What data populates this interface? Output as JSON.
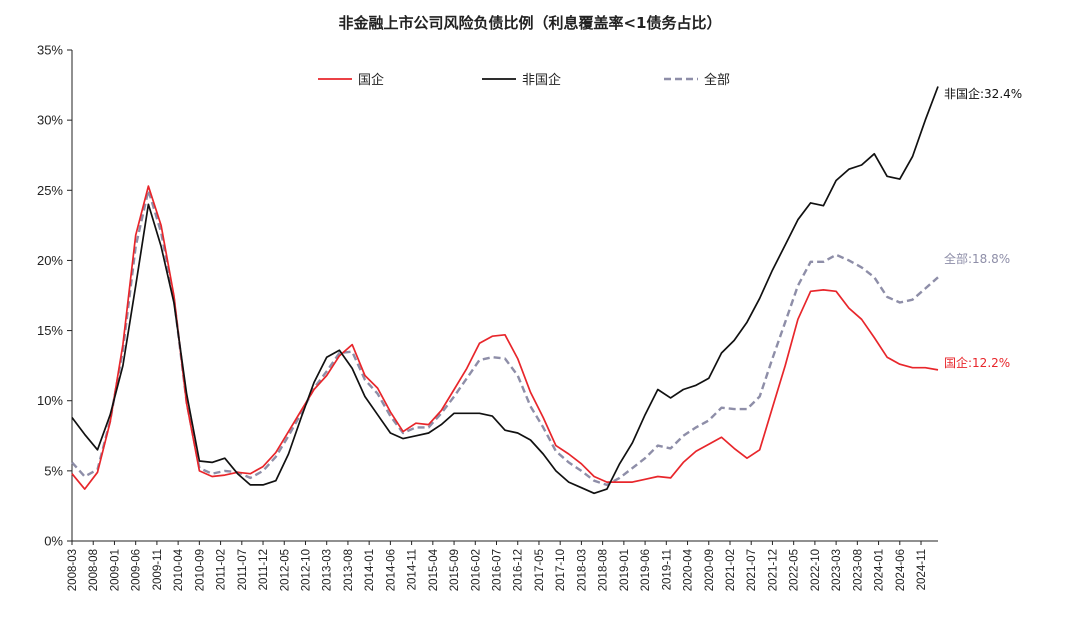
{
  "chart_data": {
    "type": "line",
    "title": "非金融上市公司风险负债比例（利息覆盖率<1债务占比）",
    "xlabel": "",
    "ylabel": "",
    "ylim": [
      0,
      35
    ],
    "yticks": [
      "0%",
      "5%",
      "10%",
      "15%",
      "20%",
      "25%",
      "30%",
      "35%"
    ],
    "grid": false,
    "legend_position": "top",
    "x_tick_labels": [
      "2008-03",
      "2008-08",
      "2009-01",
      "2009-06",
      "2009-11",
      "2010-04",
      "2010-09",
      "2011-02",
      "2011-07",
      "2011-12",
      "2012-05",
      "2012-10",
      "2013-03",
      "2013-08",
      "2014-01",
      "2014-06",
      "2014-11",
      "2015-04",
      "2015-09",
      "2016-02",
      "2016-07",
      "2016-12",
      "2017-05",
      "2017-10",
      "2018-03",
      "2018-08",
      "2019-01",
      "2019-06",
      "2019-11",
      "2020-04",
      "2020-09",
      "2021-02",
      "2021-07",
      "2021-12",
      "2022-05",
      "2022-10",
      "2023-03",
      "2023-08",
      "2024-01",
      "2024-06",
      "2024-11"
    ],
    "series": [
      {
        "name": "国企",
        "color": "#e8262b",
        "dash": "solid",
        "end_label": "国企:12.2%",
        "points": [
          [
            "2008-03",
            4.8
          ],
          [
            "2008-06",
            3.7
          ],
          [
            "2008-09",
            4.9
          ],
          [
            "2008-12",
            8.5
          ],
          [
            "2009-03",
            14.0
          ],
          [
            "2009-06",
            21.8
          ],
          [
            "2009-09",
            25.3
          ],
          [
            "2009-12",
            22.5
          ],
          [
            "2010-03",
            17.5
          ],
          [
            "2010-06",
            9.8
          ],
          [
            "2010-09",
            5.0
          ],
          [
            "2010-12",
            4.6
          ],
          [
            "2011-03",
            4.7
          ],
          [
            "2011-06",
            4.9
          ],
          [
            "2011-09",
            4.8
          ],
          [
            "2011-12",
            5.3
          ],
          [
            "2012-03",
            6.3
          ],
          [
            "2012-06",
            7.8
          ],
          [
            "2012-09",
            9.3
          ],
          [
            "2012-12",
            10.8
          ],
          [
            "2013-03",
            11.8
          ],
          [
            "2013-06",
            13.2
          ],
          [
            "2013-09",
            14.0
          ],
          [
            "2013-12",
            11.8
          ],
          [
            "2014-03",
            10.9
          ],
          [
            "2014-06",
            9.2
          ],
          [
            "2014-09",
            7.8
          ],
          [
            "2014-12",
            8.4
          ],
          [
            "2015-03",
            8.3
          ],
          [
            "2015-06",
            9.3
          ],
          [
            "2015-09",
            10.8
          ],
          [
            "2015-12",
            12.3
          ],
          [
            "2016-03",
            14.1
          ],
          [
            "2016-06",
            14.6
          ],
          [
            "2016-09",
            14.7
          ],
          [
            "2016-12",
            13.0
          ],
          [
            "2017-03",
            10.6
          ],
          [
            "2017-06",
            8.8
          ],
          [
            "2017-09",
            6.8
          ],
          [
            "2017-12",
            6.2
          ],
          [
            "2018-03",
            5.5
          ],
          [
            "2018-06",
            4.6
          ],
          [
            "2018-09",
            4.2
          ],
          [
            "2018-12",
            4.2
          ],
          [
            "2019-03",
            4.2
          ],
          [
            "2019-06",
            4.4
          ],
          [
            "2019-09",
            4.6
          ],
          [
            "2019-12",
            4.5
          ],
          [
            "2020-03",
            5.6
          ],
          [
            "2020-06",
            6.4
          ],
          [
            "2020-09",
            6.9
          ],
          [
            "2020-12",
            7.4
          ],
          [
            "2021-03",
            6.6
          ],
          [
            "2021-06",
            5.9
          ],
          [
            "2021-09",
            6.5
          ],
          [
            "2021-12",
            9.5
          ],
          [
            "2022-03",
            12.5
          ],
          [
            "2022-06",
            15.8
          ],
          [
            "2022-09",
            17.8
          ],
          [
            "2022-12",
            17.9
          ],
          [
            "2023-03",
            17.8
          ],
          [
            "2023-06",
            16.6
          ],
          [
            "2023-09",
            15.8
          ],
          [
            "2023-12",
            14.5
          ],
          [
            "2024-03",
            13.1
          ],
          [
            "2024-06",
            12.6
          ],
          [
            "2024-09",
            12.35
          ],
          [
            "2024-12",
            12.35
          ],
          [
            "2025-03",
            12.2
          ]
        ]
      },
      {
        "name": "非国企",
        "color": "#111111",
        "dash": "solid",
        "end_label": "非国企:32.4%",
        "points": [
          [
            "2008-03",
            8.8
          ],
          [
            "2008-06",
            7.6
          ],
          [
            "2008-09",
            6.5
          ],
          [
            "2008-12",
            9.0
          ],
          [
            "2009-03",
            12.5
          ],
          [
            "2009-06",
            18.2
          ],
          [
            "2009-09",
            24.0
          ],
          [
            "2009-12",
            21.0
          ],
          [
            "2010-03",
            17.0
          ],
          [
            "2010-06",
            10.5
          ],
          [
            "2010-09",
            5.7
          ],
          [
            "2010-12",
            5.6
          ],
          [
            "2011-03",
            5.9
          ],
          [
            "2011-06",
            4.8
          ],
          [
            "2011-09",
            4.0
          ],
          [
            "2011-12",
            4.0
          ],
          [
            "2012-03",
            4.3
          ],
          [
            "2012-06",
            6.2
          ],
          [
            "2012-09",
            8.8
          ],
          [
            "2012-12",
            11.3
          ],
          [
            "2013-03",
            13.1
          ],
          [
            "2013-06",
            13.6
          ],
          [
            "2013-09",
            12.3
          ],
          [
            "2013-12",
            10.3
          ],
          [
            "2014-03",
            9.0
          ],
          [
            "2014-06",
            7.7
          ],
          [
            "2014-09",
            7.3
          ],
          [
            "2014-12",
            7.5
          ],
          [
            "2015-03",
            7.7
          ],
          [
            "2015-06",
            8.3
          ],
          [
            "2015-09",
            9.1
          ],
          [
            "2015-12",
            9.1
          ],
          [
            "2016-03",
            9.1
          ],
          [
            "2016-06",
            8.9
          ],
          [
            "2016-09",
            7.9
          ],
          [
            "2016-12",
            7.7
          ],
          [
            "2017-03",
            7.2
          ],
          [
            "2017-06",
            6.2
          ],
          [
            "2017-09",
            5.0
          ],
          [
            "2017-12",
            4.2
          ],
          [
            "2018-03",
            3.8
          ],
          [
            "2018-06",
            3.4
          ],
          [
            "2018-09",
            3.7
          ],
          [
            "2018-12",
            5.5
          ],
          [
            "2019-03",
            7.0
          ],
          [
            "2019-06",
            9.0
          ],
          [
            "2019-09",
            10.8
          ],
          [
            "2019-12",
            10.2
          ],
          [
            "2020-03",
            10.8
          ],
          [
            "2020-06",
            11.1
          ],
          [
            "2020-09",
            11.6
          ],
          [
            "2020-12",
            13.4
          ],
          [
            "2021-03",
            14.3
          ],
          [
            "2021-06",
            15.6
          ],
          [
            "2021-09",
            17.3
          ],
          [
            "2021-12",
            19.3
          ],
          [
            "2022-03",
            21.1
          ],
          [
            "2022-06",
            22.9
          ],
          [
            "2022-09",
            24.1
          ],
          [
            "2022-12",
            23.9
          ],
          [
            "2023-03",
            25.7
          ],
          [
            "2023-06",
            26.5
          ],
          [
            "2023-09",
            26.8
          ],
          [
            "2023-12",
            27.6
          ],
          [
            "2024-03",
            26.0
          ],
          [
            "2024-06",
            25.8
          ],
          [
            "2024-09",
            27.4
          ],
          [
            "2024-12",
            30.0
          ],
          [
            "2025-03",
            32.4
          ]
        ]
      },
      {
        "name": "全部",
        "color": "#8e8ea8",
        "dash": "dashed",
        "end_label": "全部:18.8%",
        "points": [
          [
            "2008-03",
            5.6
          ],
          [
            "2008-06",
            4.6
          ],
          [
            "2008-09",
            5.1
          ],
          [
            "2008-12",
            8.6
          ],
          [
            "2009-03",
            13.6
          ],
          [
            "2009-06",
            21.0
          ],
          [
            "2009-09",
            25.0
          ],
          [
            "2009-12",
            22.0
          ],
          [
            "2010-03",
            17.3
          ],
          [
            "2010-06",
            9.9
          ],
          [
            "2010-09",
            5.2
          ],
          [
            "2010-12",
            4.8
          ],
          [
            "2011-03",
            5.0
          ],
          [
            "2011-06",
            4.9
          ],
          [
            "2011-09",
            4.5
          ],
          [
            "2011-12",
            5.0
          ],
          [
            "2012-03",
            6.0
          ],
          [
            "2012-06",
            7.5
          ],
          [
            "2012-09",
            9.1
          ],
          [
            "2012-12",
            10.9
          ],
          [
            "2013-03",
            12.1
          ],
          [
            "2013-06",
            13.4
          ],
          [
            "2013-09",
            13.5
          ],
          [
            "2013-12",
            11.5
          ],
          [
            "2014-03",
            10.5
          ],
          [
            "2014-06",
            8.9
          ],
          [
            "2014-09",
            7.7
          ],
          [
            "2014-12",
            8.1
          ],
          [
            "2015-03",
            8.1
          ],
          [
            "2015-06",
            9.1
          ],
          [
            "2015-09",
            10.3
          ],
          [
            "2015-12",
            11.6
          ],
          [
            "2016-03",
            12.9
          ],
          [
            "2016-06",
            13.1
          ],
          [
            "2016-09",
            13.0
          ],
          [
            "2016-12",
            11.8
          ],
          [
            "2017-03",
            9.6
          ],
          [
            "2017-06",
            8.1
          ],
          [
            "2017-09",
            6.4
          ],
          [
            "2017-12",
            5.6
          ],
          [
            "2018-03",
            5.0
          ],
          [
            "2018-06",
            4.3
          ],
          [
            "2018-09",
            4.0
          ],
          [
            "2018-12",
            4.5
          ],
          [
            "2019-03",
            5.2
          ],
          [
            "2019-06",
            5.9
          ],
          [
            "2019-09",
            6.8
          ],
          [
            "2019-12",
            6.6
          ],
          [
            "2020-03",
            7.5
          ],
          [
            "2020-06",
            8.1
          ],
          [
            "2020-09",
            8.6
          ],
          [
            "2020-12",
            9.5
          ],
          [
            "2021-03",
            9.4
          ],
          [
            "2021-06",
            9.4
          ],
          [
            "2021-09",
            10.3
          ],
          [
            "2021-12",
            13.0
          ],
          [
            "2022-03",
            15.6
          ],
          [
            "2022-06",
            18.2
          ],
          [
            "2022-09",
            19.9
          ],
          [
            "2022-12",
            19.9
          ],
          [
            "2023-03",
            20.4
          ],
          [
            "2023-06",
            20.0
          ],
          [
            "2023-09",
            19.5
          ],
          [
            "2023-12",
            18.8
          ],
          [
            "2024-03",
            17.4
          ],
          [
            "2024-06",
            17.0
          ],
          [
            "2024-09",
            17.2
          ],
          [
            "2024-12",
            18.0
          ],
          [
            "2025-03",
            18.8
          ]
        ]
      }
    ]
  }
}
